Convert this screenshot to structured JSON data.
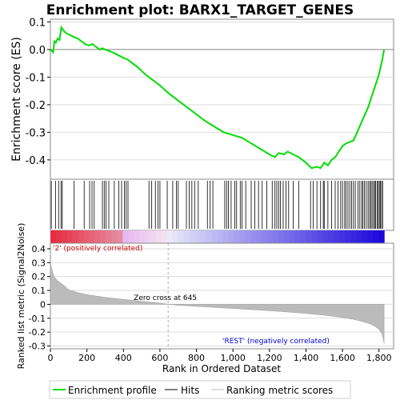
{
  "title": "Enrichment plot: BARX1_TARGET_GENES",
  "colors": {
    "es_line": "#00dd00",
    "hit_line": "#000000",
    "metric_fill": "#bbbbbb",
    "pos_label": "#cc0000",
    "neg_label": "#0000cc",
    "grid": "#dddddd",
    "zero_line": "#888888"
  },
  "legend": {
    "enrichment_profile": "Enrichment profile",
    "hits": "Hits",
    "ranking_metric": "Ranking metric scores"
  },
  "chart_data": [
    {
      "type": "line",
      "panel": "enrichment",
      "ylabel": "Enrichment score (ES)",
      "xlim": [
        0,
        1880
      ],
      "ylim": [
        -0.47,
        0.11
      ],
      "yticks": [
        0.1,
        0.0,
        -0.1,
        -0.2,
        -0.3,
        -0.4
      ],
      "ytick_labels": [
        "0.1",
        "0.0",
        "-0.1",
        "-0.2",
        "-0.3",
        "-0.4"
      ],
      "grid": true,
      "series": [
        {
          "x": [
            0,
            15,
            22,
            30,
            40,
            50,
            60,
            70,
            85,
            100,
            115,
            130,
            150,
            170,
            190,
            210,
            230,
            250,
            270,
            285,
            300,
            320,
            340,
            370,
            400,
            420,
            450,
            480,
            520,
            560,
            600,
            650,
            700,
            750,
            800,
            850,
            900,
            950,
            1000,
            1050,
            1100,
            1150,
            1200,
            1230,
            1250,
            1280,
            1300,
            1330,
            1360,
            1400,
            1430,
            1460,
            1480,
            1500,
            1520,
            1540,
            1560,
            1580,
            1600,
            1620,
            1640,
            1660,
            1680,
            1700,
            1720,
            1740,
            1760,
            1780,
            1800,
            1810,
            1820,
            1828
          ],
          "y": [
            0.0,
            -0.01,
            0.03,
            0.025,
            0.04,
            0.035,
            0.08,
            0.07,
            0.06,
            0.055,
            0.05,
            0.045,
            0.04,
            0.03,
            0.02,
            0.015,
            0.02,
            0.01,
            0.0,
            0.005,
            0.0,
            -0.005,
            -0.01,
            -0.02,
            -0.03,
            -0.035,
            -0.05,
            -0.065,
            -0.09,
            -0.11,
            -0.13,
            -0.16,
            -0.185,
            -0.21,
            -0.235,
            -0.26,
            -0.28,
            -0.3,
            -0.31,
            -0.32,
            -0.34,
            -0.36,
            -0.38,
            -0.39,
            -0.375,
            -0.38,
            -0.37,
            -0.38,
            -0.39,
            -0.41,
            -0.43,
            -0.425,
            -0.43,
            -0.41,
            -0.42,
            -0.4,
            -0.39,
            -0.37,
            -0.35,
            -0.34,
            -0.335,
            -0.33,
            -0.3,
            -0.27,
            -0.24,
            -0.21,
            -0.17,
            -0.13,
            -0.09,
            -0.06,
            -0.03,
            0.0
          ]
        }
      ]
    },
    {
      "type": "scatter",
      "panel": "hits",
      "xlim": [
        0,
        1880
      ],
      "hit_positions": [
        5,
        28,
        45,
        58,
        65,
        130,
        185,
        215,
        228,
        240,
        285,
        295,
        305,
        320,
        350,
        375,
        390,
        405,
        415,
        425,
        540,
        555,
        575,
        590,
        600,
        640,
        670,
        690,
        700,
        745,
        760,
        775,
        790,
        810,
        860,
        875,
        890,
        955,
        965,
        975,
        990,
        1010,
        1020,
        1040,
        1050,
        1070,
        1100,
        1120,
        1140,
        1160,
        1185,
        1215,
        1230,
        1240,
        1250,
        1260,
        1275,
        1290,
        1305,
        1330,
        1360,
        1425,
        1440,
        1460,
        1480,
        1495,
        1500,
        1520,
        1540,
        1560,
        1575,
        1590,
        1600,
        1612,
        1620,
        1630,
        1640,
        1650,
        1660,
        1670,
        1685,
        1695,
        1705,
        1712,
        1720,
        1730,
        1740,
        1748,
        1755,
        1762,
        1770,
        1776,
        1782,
        1790,
        1796,
        1802,
        1808,
        1814,
        1820
      ]
    },
    {
      "type": "area",
      "panel": "ranking_metric",
      "xlabel": "Rank in Ordered Dataset",
      "ylabel": "Ranked list metric (Signal2Noise)",
      "xlim": [
        0,
        1880
      ],
      "ylim": [
        -0.32,
        0.44
      ],
      "yticks": [
        0.4,
        0.3,
        0.2,
        0.1,
        0.0,
        -0.1,
        -0.2,
        -0.3
      ],
      "ytick_labels": [
        "0.4",
        "0.3",
        "0.2",
        "0.1",
        "0",
        "-0.1",
        "-0.2",
        "-0.3"
      ],
      "xticks": [
        0,
        200,
        400,
        600,
        800,
        1000,
        1200,
        1400,
        1600,
        1800
      ],
      "xtick_labels": [
        "0",
        "200",
        "400",
        "600",
        "800",
        "1,000",
        "1,200",
        "1,400",
        "1,600",
        "1,800"
      ],
      "x": [
        0,
        10,
        20,
        40,
        60,
        80,
        100,
        150,
        200,
        300,
        400,
        500,
        600,
        645,
        700,
        800,
        900,
        1000,
        1100,
        1200,
        1300,
        1400,
        1500,
        1600,
        1650,
        1700,
        1750,
        1780,
        1800,
        1815,
        1822,
        1828
      ],
      "y": [
        0.3,
        0.24,
        0.2,
        0.17,
        0.15,
        0.13,
        0.105,
        0.085,
        0.07,
        0.05,
        0.035,
        0.022,
        0.01,
        0.0,
        -0.006,
        -0.015,
        -0.022,
        -0.03,
        -0.038,
        -0.046,
        -0.055,
        -0.065,
        -0.078,
        -0.095,
        -0.105,
        -0.12,
        -0.14,
        -0.16,
        -0.18,
        -0.21,
        -0.24,
        -0.28
      ],
      "zero_cross_label": "Zero cross at 645",
      "zero_cross_rank": 645,
      "pos_label": "'2' (positively correlated)",
      "neg_label": "'REST' (negatively correlated)"
    }
  ]
}
